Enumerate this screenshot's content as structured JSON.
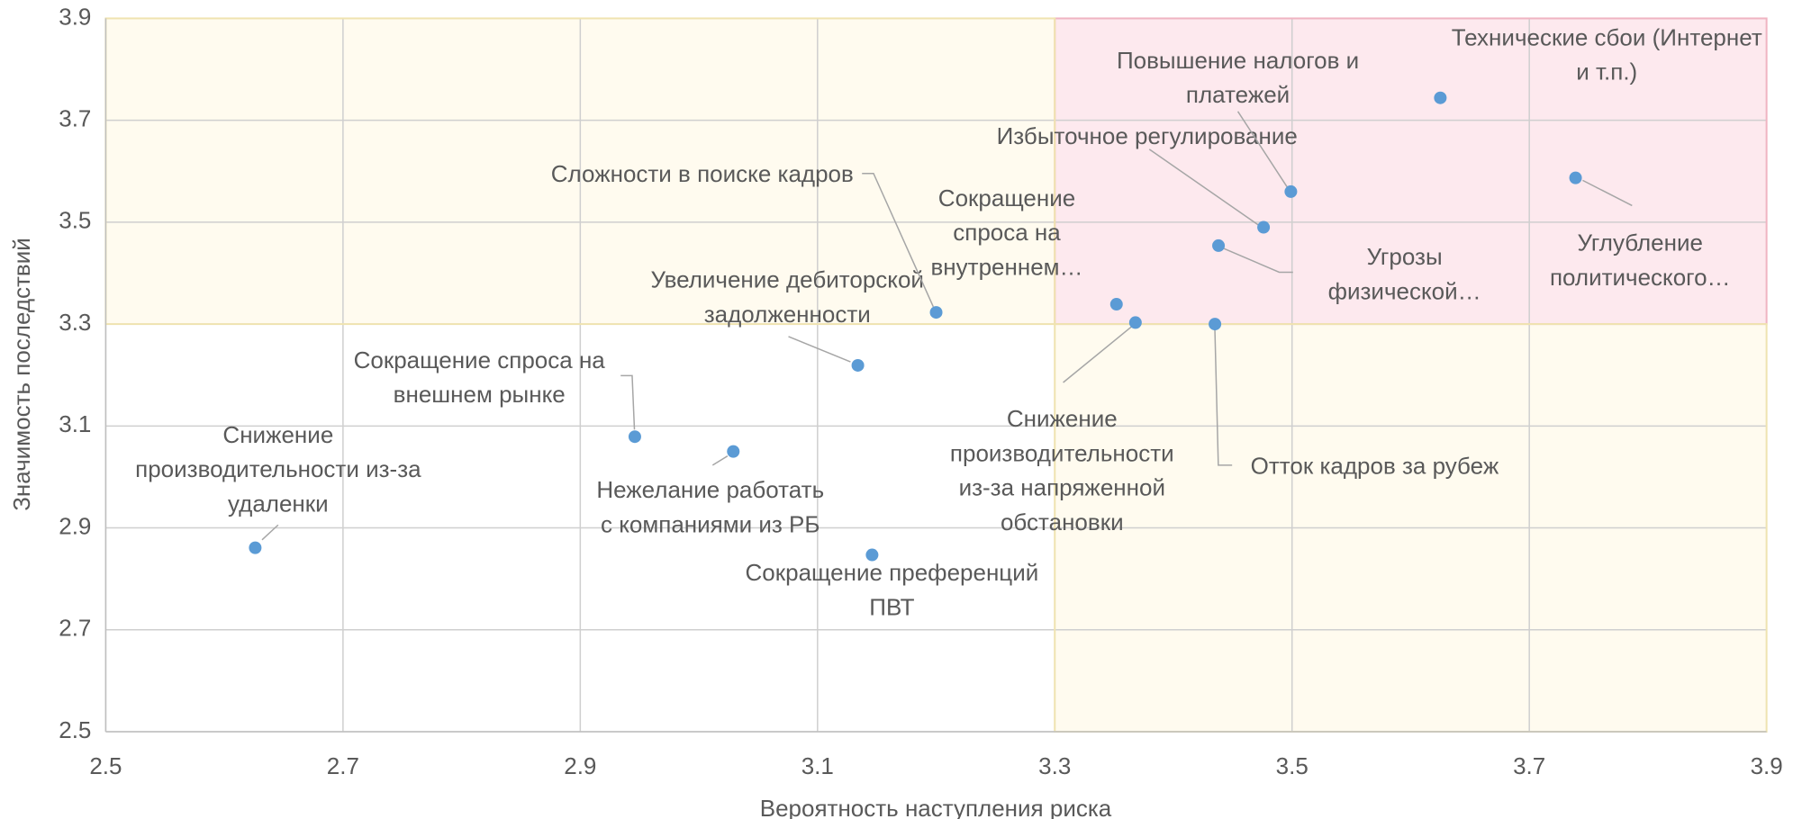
{
  "chart_data": {
    "type": "scatter",
    "x_label": "Вероятность наступления риска",
    "y_label": "Значимость последствий",
    "x": [
      2.626,
      2.946,
      3.029,
      3.146,
      3.134,
      3.2,
      3.352,
      3.368,
      3.435,
      3.438,
      3.476,
      3.499,
      3.625,
      3.739
    ],
    "values": [
      2.861,
      3.079,
      3.05,
      2.847,
      3.219,
      3.323,
      3.339,
      3.303,
      3.3,
      3.454,
      3.49,
      3.56,
      3.744,
      3.587
    ],
    "labels": [
      [
        "Снижение",
        "производительности из-за",
        "удаленки"
      ],
      [
        "Сокращение спроса на",
        "внешнем рынке"
      ],
      [
        "Нежелание работать",
        "с компаниями из РБ"
      ],
      [
        "Сокращение преференций",
        "ПВТ"
      ],
      [
        "Увеличение дебиторской",
        "задолженности"
      ],
      [
        "Сложности в поиске кадров"
      ],
      [
        "Сокращение",
        "спроса на",
        "внутреннем…"
      ],
      [
        "Снижение",
        "производительности",
        "из-за напряженной",
        "обстановки"
      ],
      [
        "Отток кадров за рубеж"
      ],
      [
        "Угрозы",
        "физической…"
      ],
      [
        "Избыточное регулирование"
      ],
      [
        "Повышение налогов и",
        "платежей"
      ],
      [
        "Технические сбои (Интернет",
        "и т.п.)"
      ],
      [
        "Углубление",
        "политического…"
      ]
    ],
    "color": "#5b9bd5",
    "xlim": [
      2.5,
      3.9
    ],
    "xticks": [
      2.5,
      2.7,
      2.9,
      3.1,
      3.3,
      3.5,
      3.7,
      3.9
    ],
    "ylim": [
      2.5,
      3.9
    ],
    "yticks": [
      2.5,
      2.7,
      2.9,
      3.1,
      3.3,
      3.5,
      3.7,
      3.9
    ],
    "grid": true
  }
}
